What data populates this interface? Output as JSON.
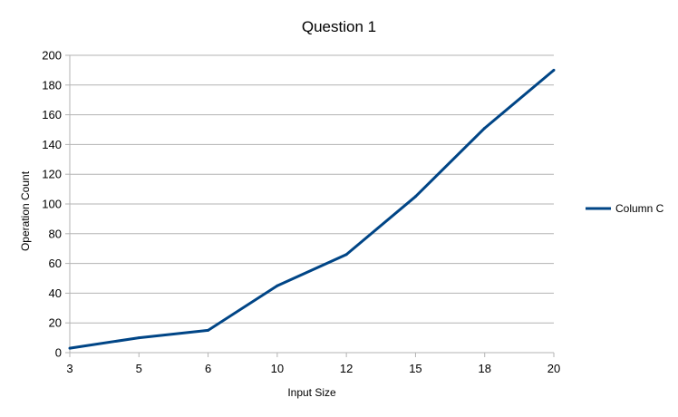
{
  "chart_data": {
    "type": "line",
    "title": "Question 1",
    "xlabel": "Input Size",
    "ylabel": "Operation Count",
    "categories": [
      "3",
      "5",
      "6",
      "10",
      "12",
      "15",
      "18",
      "20"
    ],
    "series": [
      {
        "name": "Column C",
        "values": [
          3,
          10,
          15,
          45,
          66,
          105,
          151,
          190
        ],
        "color": "#004586"
      }
    ],
    "ylim": [
      0,
      200
    ],
    "yticks": [
      0,
      20,
      40,
      60,
      80,
      100,
      120,
      140,
      160,
      180,
      200
    ],
    "grid": true,
    "legend_position": "right"
  }
}
